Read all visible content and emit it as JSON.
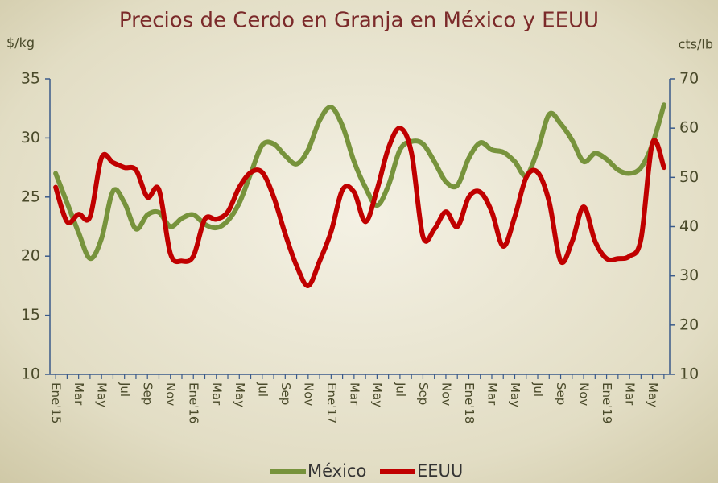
{
  "chart_data": {
    "type": "line",
    "title": "Precios de Cerdo en Granja en México y EEUU",
    "y_label": "$/kg",
    "y2_label": "cts/lb",
    "categories": [
      "Ene'15",
      null,
      "Mar",
      null,
      "May",
      null,
      "Jul",
      null,
      "Sep",
      null,
      "Nov",
      null,
      "Ene'16",
      null,
      "Mar",
      null,
      "May",
      null,
      "Jul",
      null,
      "Sep",
      null,
      "Nov",
      null,
      "Ene'17",
      null,
      "Mar",
      null,
      "May",
      null,
      "Jul",
      null,
      "Sep",
      null,
      "Nov",
      null,
      "Ene'18",
      null,
      "Mar",
      null,
      "May",
      null,
      "Jul",
      null,
      "Sep",
      null,
      "Nov",
      null,
      "Ene'19",
      null,
      "Mar",
      null,
      "May",
      null
    ],
    "ylim": [
      10,
      35
    ],
    "yticks": [
      10,
      15,
      20,
      25,
      30,
      35
    ],
    "y2lim": [
      10,
      70
    ],
    "y2ticks": [
      10,
      20,
      30,
      40,
      50,
      60,
      70
    ],
    "legend": "bottom",
    "series": [
      {
        "name": "México",
        "color": "#77933c",
        "axis": "y",
        "values": [
          27.0,
          24.5,
          22.0,
          19.8,
          21.5,
          25.5,
          24.5,
          22.3,
          23.5,
          23.7,
          22.5,
          23.2,
          23.5,
          22.7,
          22.4,
          23.0,
          24.5,
          27.0,
          29.4,
          29.5,
          28.5,
          27.8,
          29.0,
          31.5,
          32.6,
          31.0,
          28.0,
          25.8,
          24.3,
          26.0,
          29.0,
          29.7,
          29.5,
          28.0,
          26.3,
          26.0,
          28.3,
          29.6,
          29.0,
          28.8,
          28.0,
          26.8,
          29.0,
          32.0,
          31.2,
          29.8,
          28.0,
          28.7,
          28.2,
          27.3,
          27.0,
          27.5,
          29.5,
          32.8
        ]
      },
      {
        "name": "EEUU",
        "color": "#c00000",
        "axis": "y2",
        "values": [
          48,
          41,
          42.5,
          42,
          54,
          53,
          52,
          51.5,
          46,
          47.5,
          34.5,
          33,
          34,
          41.5,
          41.5,
          43,
          48,
          51,
          51,
          46,
          38.5,
          32,
          28,
          33,
          39,
          47.5,
          47,
          41,
          47.5,
          56,
          60,
          55,
          38,
          39.5,
          43,
          40,
          46,
          47,
          43,
          36,
          42,
          50,
          51,
          45,
          33,
          37,
          44,
          37,
          33.5,
          33.5,
          34,
          37.5,
          57,
          52
        ]
      }
    ]
  }
}
